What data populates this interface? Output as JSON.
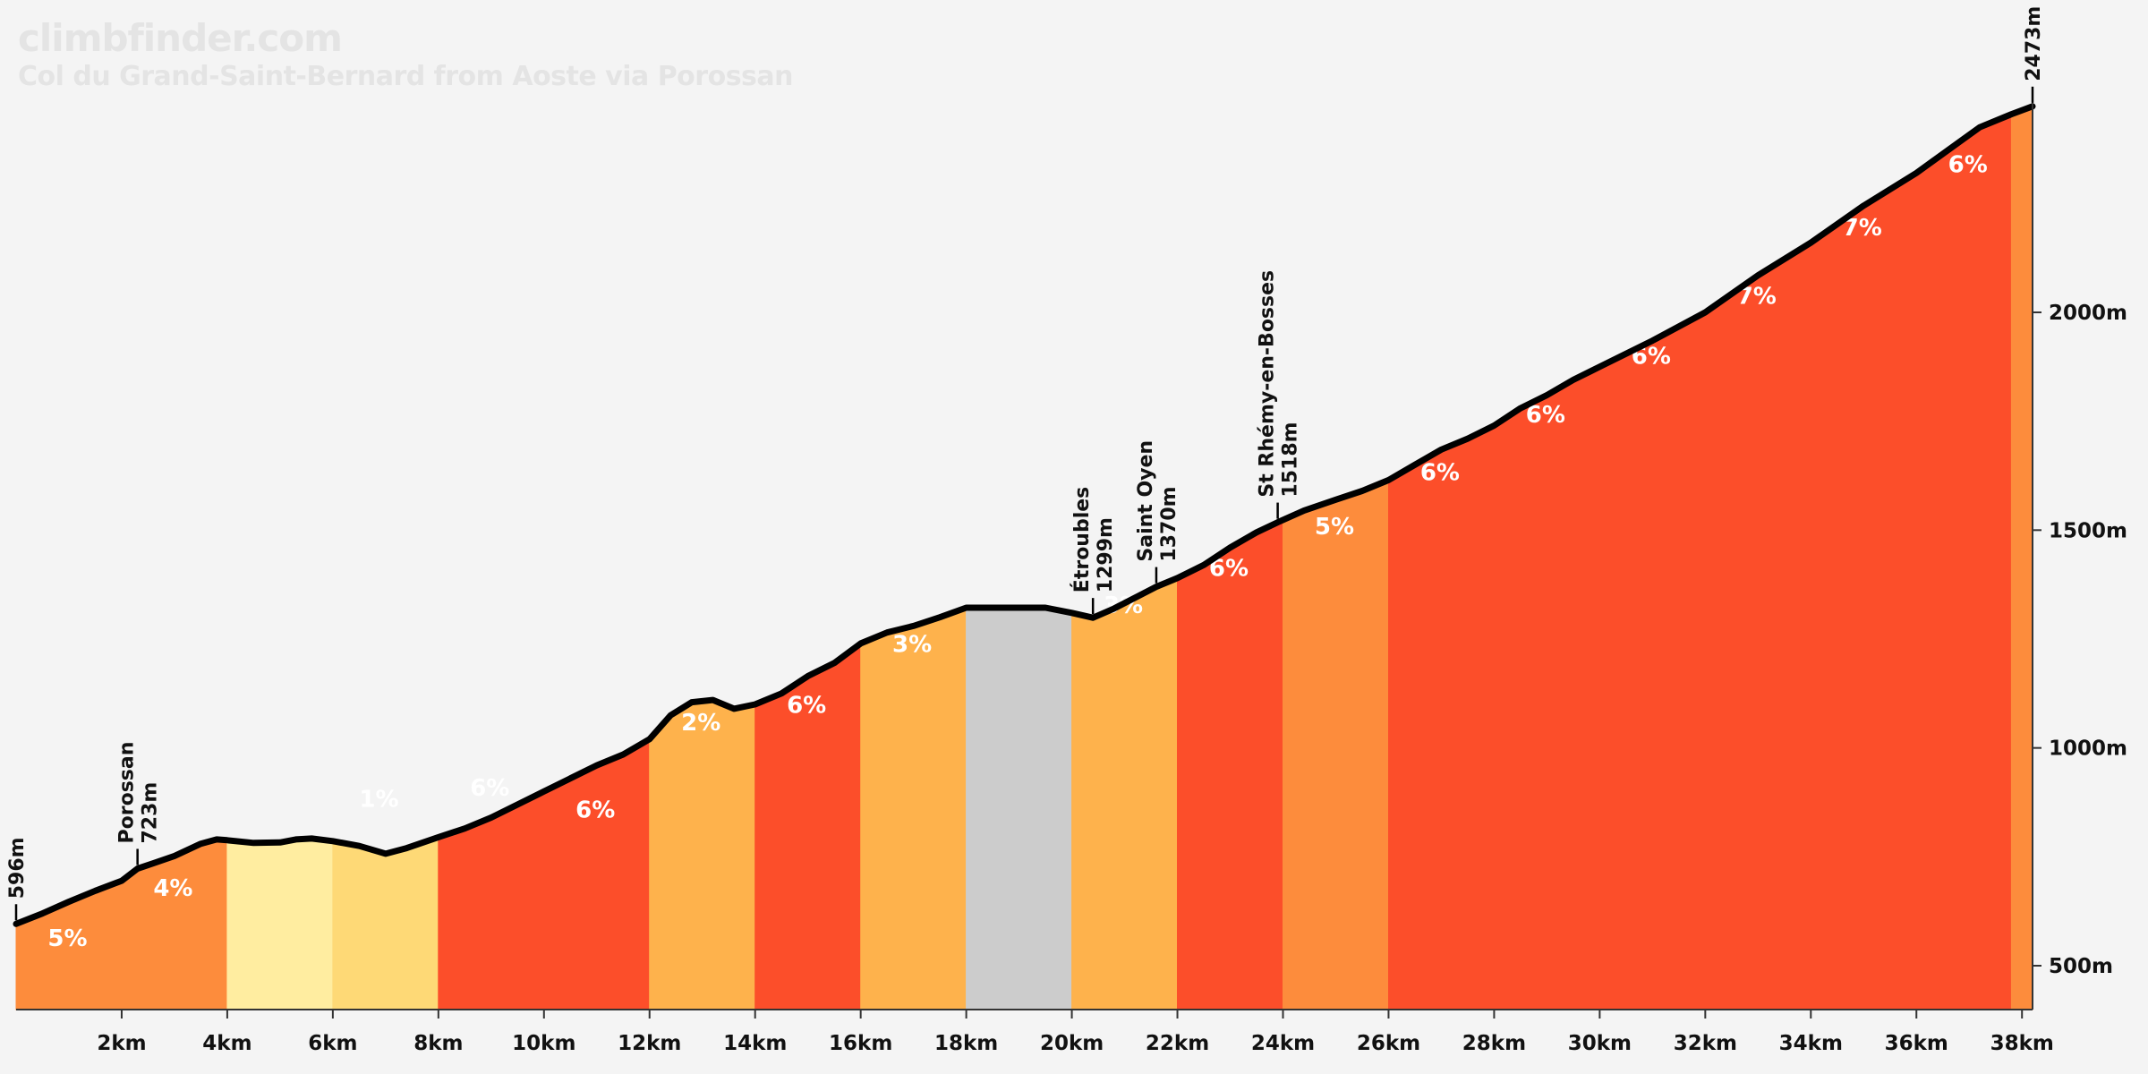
{
  "header": {
    "brand": "climbfinder.com",
    "title": "Col du Grand-Saint-Bernard from Aoste via Porossan"
  },
  "chart_data": {
    "type": "area",
    "title": "Col du Grand-Saint-Bernard from Aoste via Porossan",
    "xlabel": "",
    "ylabel": "",
    "x_unit": "km",
    "y_unit": "m",
    "xlim": [
      0,
      38.2
    ],
    "ylim": [
      400,
      2570
    ],
    "x_ticks": [
      {
        "value": 2,
        "label": "2km"
      },
      {
        "value": 4,
        "label": "4km"
      },
      {
        "value": 6,
        "label": "6km"
      },
      {
        "value": 8,
        "label": "8km"
      },
      {
        "value": 10,
        "label": "10km"
      },
      {
        "value": 12,
        "label": "12km"
      },
      {
        "value": 14,
        "label": "14km"
      },
      {
        "value": 16,
        "label": "16km"
      },
      {
        "value": 18,
        "label": "18km"
      },
      {
        "value": 20,
        "label": "20km"
      },
      {
        "value": 22,
        "label": "22km"
      },
      {
        "value": 24,
        "label": "24km"
      },
      {
        "value": 26,
        "label": "26km"
      },
      {
        "value": 28,
        "label": "28km"
      },
      {
        "value": 30,
        "label": "30km"
      },
      {
        "value": 32,
        "label": "32km"
      },
      {
        "value": 34,
        "label": "34km"
      },
      {
        "value": 36,
        "label": "36km"
      },
      {
        "value": 38,
        "label": "38km"
      }
    ],
    "y_ticks": [
      {
        "value": 500,
        "label": "500m"
      },
      {
        "value": 1000,
        "label": "1000m"
      },
      {
        "value": 1500,
        "label": "1500m"
      },
      {
        "value": 2000,
        "label": "2000m"
      }
    ],
    "segments": [
      {
        "from": 0,
        "to": 4,
        "grade": "5%",
        "label_x": 0.6,
        "color": "#fd8c3c"
      },
      {
        "from": 4,
        "to": 6,
        "grade": "",
        "label_x": 5,
        "color": "#ffeda0"
      },
      {
        "from": 6,
        "to": 8,
        "grade": "1%",
        "label_x": 6.5,
        "color": "#fed976"
      },
      {
        "from": 8,
        "to": 12,
        "grade": "6%",
        "label_x": 8.6,
        "color": "#fc4e2a"
      },
      {
        "from": 12,
        "to": 14,
        "grade": "2%",
        "label_x": 12.6,
        "color": "#feb24c"
      },
      {
        "from": 14,
        "to": 16,
        "grade": "6%",
        "label_x": 14.6,
        "color": "#fc4e2a"
      },
      {
        "from": 16,
        "to": 18,
        "grade": "3%",
        "label_x": 16.6,
        "color": "#feb24c"
      },
      {
        "from": 18,
        "to": 20,
        "grade": "",
        "label_x": 19,
        "color": "#cccccc"
      },
      {
        "from": 20,
        "to": 22,
        "grade": "3%",
        "label_x": 20.6,
        "color": "#feb24c"
      },
      {
        "from": 22,
        "to": 24,
        "grade": "6%",
        "label_x": 22.6,
        "color": "#fc4e2a"
      },
      {
        "from": 24,
        "to": 26,
        "grade": "5%",
        "label_x": 24.6,
        "color": "#fd8c3c"
      },
      {
        "from": 26,
        "to": 37.8,
        "grade": "",
        "label_x": 32,
        "color": "#fc4e2a"
      },
      {
        "from": 37.8,
        "to": 38.2,
        "grade": "",
        "label_x": 38,
        "color": "#fd8c3c"
      }
    ],
    "extra_grade_labels": [
      {
        "x": 2.6,
        "elevation": 660,
        "grade": "4%"
      },
      {
        "x": 10.6,
        "elevation": 840,
        "grade": "6%"
      },
      {
        "x": 26.6,
        "elevation": 1615,
        "grade": "6%"
      },
      {
        "x": 28.6,
        "elevation": 1747,
        "grade": "6%"
      },
      {
        "x": 30.6,
        "elevation": 1882,
        "grade": "6%"
      },
      {
        "x": 32.6,
        "elevation": 2020,
        "grade": "7%"
      },
      {
        "x": 34.6,
        "elevation": 2177,
        "grade": "7%"
      },
      {
        "x": 36.6,
        "elevation": 2322,
        "grade": "6%"
      }
    ],
    "grade_label_elevations": [
      545,
      null,
      865,
      890,
      1040,
      1080,
      1220,
      null,
      1310,
      1395,
      1490,
      null,
      null
    ],
    "profile": [
      {
        "x": 0,
        "y": 596
      },
      {
        "x": 0.5,
        "y": 620
      },
      {
        "x": 1,
        "y": 647
      },
      {
        "x": 1.5,
        "y": 672
      },
      {
        "x": 2,
        "y": 695
      },
      {
        "x": 2.3,
        "y": 723
      },
      {
        "x": 2.6,
        "y": 735
      },
      {
        "x": 3,
        "y": 752
      },
      {
        "x": 3.5,
        "y": 780
      },
      {
        "x": 3.8,
        "y": 790
      },
      {
        "x": 4,
        "y": 788
      },
      {
        "x": 4.5,
        "y": 782
      },
      {
        "x": 5,
        "y": 783
      },
      {
        "x": 5.3,
        "y": 790
      },
      {
        "x": 5.6,
        "y": 792
      },
      {
        "x": 6,
        "y": 786
      },
      {
        "x": 6.5,
        "y": 775
      },
      {
        "x": 7,
        "y": 757
      },
      {
        "x": 7.4,
        "y": 770
      },
      {
        "x": 8,
        "y": 795
      },
      {
        "x": 8.5,
        "y": 815
      },
      {
        "x": 9,
        "y": 840
      },
      {
        "x": 10,
        "y": 900
      },
      {
        "x": 11,
        "y": 960
      },
      {
        "x": 11.5,
        "y": 985
      },
      {
        "x": 12,
        "y": 1020
      },
      {
        "x": 12.4,
        "y": 1075
      },
      {
        "x": 12.8,
        "y": 1105
      },
      {
        "x": 13.2,
        "y": 1110
      },
      {
        "x": 13.6,
        "y": 1090
      },
      {
        "x": 14,
        "y": 1100
      },
      {
        "x": 14.5,
        "y": 1125
      },
      {
        "x": 15,
        "y": 1165
      },
      {
        "x": 15.5,
        "y": 1195
      },
      {
        "x": 16,
        "y": 1240
      },
      {
        "x": 16.5,
        "y": 1265
      },
      {
        "x": 17,
        "y": 1280
      },
      {
        "x": 17.5,
        "y": 1300
      },
      {
        "x": 18,
        "y": 1322
      },
      {
        "x": 18.5,
        "y": 1322
      },
      {
        "x": 19,
        "y": 1322
      },
      {
        "x": 19.5,
        "y": 1322
      },
      {
        "x": 20,
        "y": 1310
      },
      {
        "x": 20.4,
        "y": 1299
      },
      {
        "x": 20.8,
        "y": 1320
      },
      {
        "x": 21.2,
        "y": 1345
      },
      {
        "x": 21.6,
        "y": 1370
      },
      {
        "x": 22,
        "y": 1390
      },
      {
        "x": 22.5,
        "y": 1420
      },
      {
        "x": 23,
        "y": 1460
      },
      {
        "x": 23.5,
        "y": 1495
      },
      {
        "x": 23.9,
        "y": 1518
      },
      {
        "x": 24.4,
        "y": 1545
      },
      {
        "x": 25,
        "y": 1570
      },
      {
        "x": 25.5,
        "y": 1590
      },
      {
        "x": 26,
        "y": 1615
      },
      {
        "x": 26.5,
        "y": 1650
      },
      {
        "x": 27,
        "y": 1685
      },
      {
        "x": 27.5,
        "y": 1710
      },
      {
        "x": 28,
        "y": 1740
      },
      {
        "x": 28.5,
        "y": 1780
      },
      {
        "x": 29,
        "y": 1810
      },
      {
        "x": 29.5,
        "y": 1845
      },
      {
        "x": 30,
        "y": 1875
      },
      {
        "x": 31,
        "y": 1935
      },
      {
        "x": 32,
        "y": 2000
      },
      {
        "x": 33,
        "y": 2085
      },
      {
        "x": 34,
        "y": 2160
      },
      {
        "x": 35,
        "y": 2245
      },
      {
        "x": 36,
        "y": 2320
      },
      {
        "x": 36.8,
        "y": 2390
      },
      {
        "x": 37.2,
        "y": 2425
      },
      {
        "x": 37.8,
        "y": 2455
      },
      {
        "x": 38.2,
        "y": 2473
      }
    ],
    "waypoints": [
      {
        "x": 0,
        "elevation": 596,
        "name": "",
        "elevation_label": "596m"
      },
      {
        "x": 2.3,
        "elevation": 723,
        "name": "Porossan",
        "elevation_label": "723m"
      },
      {
        "x": 20.4,
        "elevation": 1299,
        "name": "Étroubles",
        "elevation_label": "1299m"
      },
      {
        "x": 21.6,
        "elevation": 1370,
        "name": "Saint Oyen",
        "elevation_label": "1370m"
      },
      {
        "x": 23.9,
        "elevation": 1518,
        "name": "St Rhémy-en-Bosses",
        "elevation_label": "1518m"
      },
      {
        "x": 38.2,
        "elevation": 2473,
        "name": "",
        "elevation_label": "2473m"
      }
    ]
  }
}
